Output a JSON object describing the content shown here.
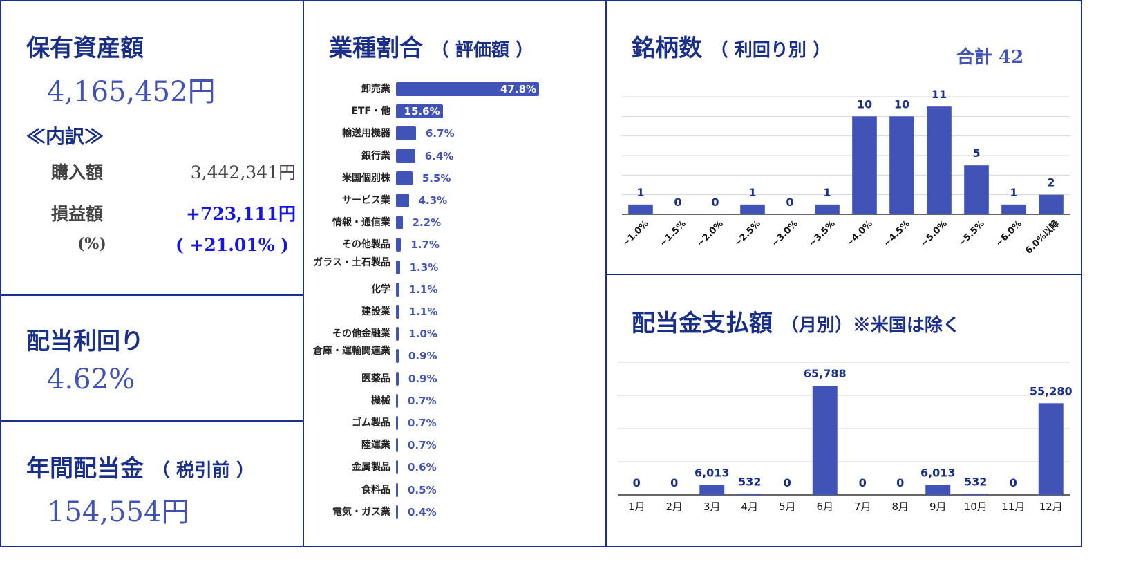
{
  "colors": {
    "border": "#1a2f8a",
    "title": "#1a2f8a",
    "value": "#4253b8",
    "bar": "#4253b8",
    "positive": "#1414e6"
  },
  "assets": {
    "title": "保有資産額",
    "total": "4,165,452円",
    "breakdown_label": "≪内訳≫",
    "purchase_label": "購入額",
    "purchase_value": "3,442,341円",
    "pl_label": "損益額",
    "pl_value": "+723,111円",
    "pct_label": "(%)",
    "pct_value": "( +21.01% )"
  },
  "yield": {
    "title": "配当利回り",
    "value": "4.62%"
  },
  "annual": {
    "title": "年間配当金",
    "subtitle": "（ 税引前 ）",
    "value": "154,554円"
  },
  "industry": {
    "title": "業種割合",
    "subtitle": "（ 評価額 ）"
  },
  "stocks": {
    "title": "銘柄数",
    "subtitle": "（ 利回り別 ）",
    "total": "合計 42"
  },
  "monthly": {
    "title": "配当金支払額",
    "subtitle": "（月別）※米国は除く"
  },
  "chart_data": [
    {
      "type": "bar",
      "orientation": "horizontal",
      "title": "業種割合（ 評価額 ）",
      "categories": [
        "卸売業",
        "ETF・他",
        "輸送用機器",
        "銀行業",
        "米国個別株",
        "サービス業",
        "情報・通信業",
        "その他製品",
        "ガラス・土石製品",
        "化学",
        "建設業",
        "その他金融業",
        "倉庫・運輸関連業",
        "医薬品",
        "機械",
        "ゴム製品",
        "陸運業",
        "金属製品",
        "食料品",
        "電気・ガス業"
      ],
      "values": [
        47.8,
        15.6,
        6.7,
        6.4,
        5.5,
        4.3,
        2.2,
        1.7,
        1.3,
        1.1,
        1.1,
        1.0,
        0.9,
        0.9,
        0.7,
        0.7,
        0.7,
        0.6,
        0.5,
        0.4
      ],
      "labels": [
        "47.8%",
        "15.6%",
        "6.7%",
        "6.4%",
        "5.5%",
        "4.3%",
        "2.2%",
        "1.7%",
        "1.3%",
        "1.1%",
        "1.1%",
        "1.0%",
        "0.9%",
        "0.9%",
        "0.7%",
        "0.7%",
        "0.7%",
        "0.6%",
        "0.5%",
        "0.4%"
      ],
      "unit": "%"
    },
    {
      "type": "bar",
      "title": "銘柄数（ 利回り別 ）",
      "categories": [
        "~1.0%",
        "~1.5%",
        "~2.0%",
        "~2.5%",
        "~3.0%",
        "~3.5%",
        "~4.0%",
        "~4.5%",
        "~5.0%",
        "~5.5%",
        "~6.0%",
        "6.0%以降"
      ],
      "values": [
        1,
        0,
        0,
        1,
        0,
        1,
        10,
        10,
        11,
        5,
        1,
        2
      ],
      "ylim": [
        0,
        12
      ],
      "grid": true
    },
    {
      "type": "bar",
      "title": "配当金支払額（月別）※米国は除く",
      "categories": [
        "1月",
        "2月",
        "3月",
        "4月",
        "5月",
        "6月",
        "7月",
        "8月",
        "9月",
        "10月",
        "11月",
        "12月"
      ],
      "values": [
        0,
        0,
        6013,
        532,
        0,
        65788,
        0,
        0,
        6013,
        532,
        0,
        55280
      ],
      "labels": [
        "0",
        "0",
        "6,013",
        "532",
        "0",
        "65,788",
        "0",
        "0",
        "6,013",
        "532",
        "0",
        "55,280"
      ],
      "ylim": [
        0,
        80000
      ],
      "grid": true
    }
  ]
}
